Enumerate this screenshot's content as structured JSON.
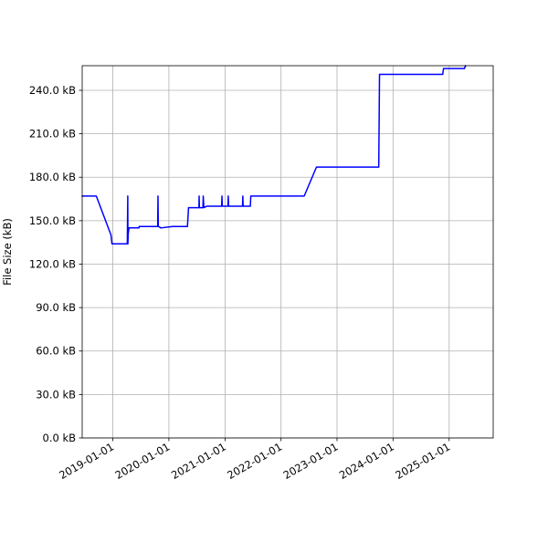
{
  "chart_data": {
    "type": "line",
    "title": "",
    "xlabel": "",
    "ylabel": "File Size (kB)",
    "grid": true,
    "legend": "none",
    "colors": {
      "line": "#0000ff",
      "grid": "#b0b0b0",
      "axes": "#000000",
      "background": "#ffffff"
    },
    "xlim": [
      "2018-06-15",
      "2025-10-15"
    ],
    "ylim": [
      0,
      257
    ],
    "x_ticks": [
      {
        "date": "2019-01-01",
        "label": "2019-01-01"
      },
      {
        "date": "2020-01-01",
        "label": "2020-01-01"
      },
      {
        "date": "2021-01-01",
        "label": "2021-01-01"
      },
      {
        "date": "2022-01-01",
        "label": "2022-01-01"
      },
      {
        "date": "2023-01-01",
        "label": "2023-01-01"
      },
      {
        "date": "2024-01-01",
        "label": "2024-01-01"
      },
      {
        "date": "2025-01-01",
        "label": "2025-01-01"
      }
    ],
    "y_ticks": [
      {
        "value": 0,
        "label": "0.0 kB"
      },
      {
        "value": 30,
        "label": "30.0 kB"
      },
      {
        "value": 60,
        "label": "60.0 kB"
      },
      {
        "value": 90,
        "label": "90.0 kB"
      },
      {
        "value": 120,
        "label": "120.0 kB"
      },
      {
        "value": 150,
        "label": "150.0 kB"
      },
      {
        "value": 180,
        "label": "180.0 kB"
      },
      {
        "value": 210,
        "label": "210.0 kB"
      },
      {
        "value": 240,
        "label": "240.0 kB"
      }
    ],
    "series": [
      {
        "x": [
          "2018-06-15",
          "2018-09-15",
          "2018-12-20",
          "2018-12-26",
          "2019-04-05",
          "2019-04-08",
          "2019-04-09",
          "2019-04-11",
          "2019-04-16",
          "2019-04-18",
          "2019-06-20",
          "2019-06-21",
          "2019-10-20",
          "2019-10-22",
          "2019-10-24",
          "2019-10-26",
          "2019-11-10",
          "2020-01-25",
          "2020-05-01",
          "2020-05-06",
          "2020-05-08",
          "2020-05-09",
          "2020-05-12",
          "2020-07-15",
          "2020-07-16",
          "2020-07-18",
          "2020-08-10",
          "2020-08-12",
          "2020-08-16",
          "2020-09-05",
          "2020-12-10",
          "2020-12-12",
          "2020-12-14",
          "2021-01-20",
          "2021-01-22",
          "2021-01-24",
          "2021-04-25",
          "2021-04-27",
          "2021-04-29",
          "2021-06-15",
          "2021-06-18",
          "2022-06-01",
          "2022-08-20",
          "2022-12-01",
          "2023-09-30",
          "2023-10-05",
          "2024-06-01",
          "2024-11-20",
          "2024-11-25",
          "2025-04-10",
          "2025-04-18"
        ],
        "y": [
          167,
          167,
          140,
          134,
          134,
          167,
          134,
          141,
          145,
          145,
          145,
          146,
          146,
          167,
          146,
          146,
          145,
          146,
          146,
          155,
          159,
          159,
          159,
          159,
          167,
          159,
          159,
          167,
          159,
          160,
          160,
          167,
          160,
          160,
          167,
          160,
          160,
          167,
          160,
          160,
          167,
          167,
          187,
          187,
          187,
          251,
          251,
          251,
          255,
          255,
          257
        ]
      }
    ]
  }
}
